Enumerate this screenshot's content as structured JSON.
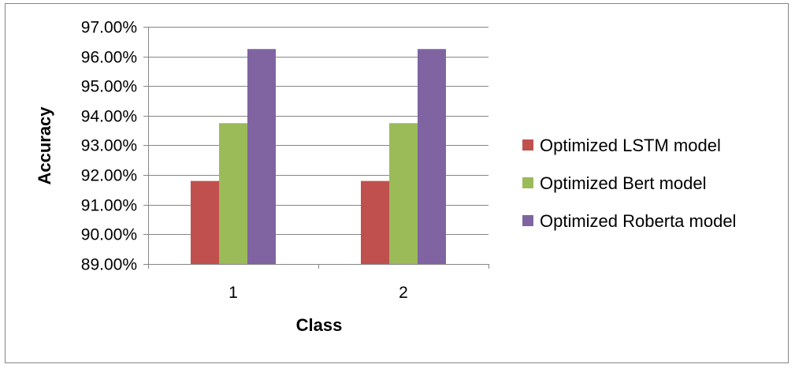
{
  "chart_data": {
    "type": "bar",
    "xlabel": "Class",
    "ylabel": "Accuracy",
    "categories": [
      "1",
      "2"
    ],
    "ylim": [
      0.89,
      0.97
    ],
    "ytick_step": 0.01,
    "y_format": "percent_2dp",
    "grid": true,
    "legend_position": "right",
    "series": [
      {
        "name": "Optimized LSTM model",
        "color": "#C0504D",
        "values": [
          0.918,
          0.918
        ]
      },
      {
        "name": "Optimized Bert model",
        "color": "#9BBB59",
        "values": [
          0.9375,
          0.9375
        ]
      },
      {
        "name": "Optimized Roberta model",
        "color": "#8064A2",
        "values": [
          0.9625,
          0.9625
        ]
      }
    ]
  }
}
